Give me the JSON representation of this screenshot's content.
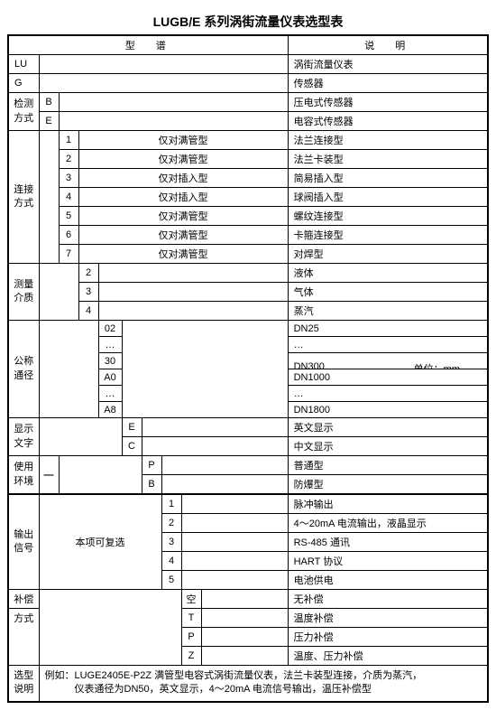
{
  "title": "LUGB/E 系列涡街流量仪表选型表",
  "header": {
    "spec": "型　谱",
    "desc": "说　明"
  },
  "rows": {
    "lu": {
      "code": "LU",
      "desc": "涡街流量仪表"
    },
    "g": {
      "code": "G",
      "desc": "传感器"
    },
    "detect": {
      "label": "检测\n方式",
      "b": {
        "code": "B",
        "desc": "压电式传感器"
      },
      "e": {
        "code": "E",
        "desc": "电容式传感器"
      }
    },
    "conn": {
      "label": "连接\n方式",
      "items": [
        {
          "code": "1",
          "mid": "仅对满管型",
          "desc": "法兰连接型"
        },
        {
          "code": "2",
          "mid": "仅对满管型",
          "desc": "法兰卡装型"
        },
        {
          "code": "3",
          "mid": "仅对插入型",
          "desc": "简易插入型"
        },
        {
          "code": "4",
          "mid": "仅对插入型",
          "desc": "球阀插入型"
        },
        {
          "code": "5",
          "mid": "仅对满管型",
          "desc": "螺纹连接型"
        },
        {
          "code": "6",
          "mid": "仅对满管型",
          "desc": "卡箍连接型"
        },
        {
          "code": "7",
          "mid": "仅对满管型",
          "desc": "对焊型"
        }
      ]
    },
    "medium": {
      "label": "测量\n介质",
      "items": [
        {
          "code": "2",
          "desc": "液体"
        },
        {
          "code": "3",
          "desc": "气体"
        },
        {
          "code": "4",
          "desc": "蒸汽"
        }
      ]
    },
    "dn": {
      "label": "公称\n通径",
      "codes": [
        "02",
        "…",
        "30",
        "A0",
        "…",
        "A8"
      ],
      "descs": [
        "DN25",
        "…",
        "DN300",
        "DN1000",
        "…",
        "DN1800"
      ],
      "unit": "单位：mm"
    },
    "disp": {
      "label": "显示\n文字",
      "e": {
        "code": "E",
        "desc": "英文显示"
      },
      "c": {
        "code": "C",
        "desc": "中文显示"
      }
    },
    "env": {
      "label": "使用\n环境",
      "dash": "—",
      "p": {
        "code": "P",
        "desc": "普通型"
      },
      "b": {
        "code": "B",
        "desc": "防爆型"
      }
    },
    "out": {
      "label": "输出\n信号",
      "note": "本项可复选",
      "items": [
        {
          "code": "1",
          "desc": "脉冲输出"
        },
        {
          "code": "2",
          "desc": "4～20mA 电流输出，液晶显示"
        },
        {
          "code": "3",
          "desc": "RS-485 通讯"
        },
        {
          "code": "4",
          "desc": "HART 协议"
        },
        {
          "code": "5",
          "desc": "电池供电"
        }
      ]
    },
    "comp": {
      "label": "补偿",
      "label2": "方式",
      "items": [
        {
          "code": "空",
          "desc": "无补偿"
        },
        {
          "code": "T",
          "desc": "温度补偿"
        },
        {
          "code": "P",
          "desc": "压力补偿"
        },
        {
          "code": "Z",
          "desc": "温度、压力补偿"
        }
      ]
    },
    "example": {
      "label": "选型\n说明",
      "text": "例如：LUGE2405E-P2Z  满管型电容式涡街流量仪表，法兰卡装型连接，介质为蒸汽，\n　　　仪表通径为DN50，英文显示，4～20mA 电流信号输出，温压补偿型"
    }
  }
}
